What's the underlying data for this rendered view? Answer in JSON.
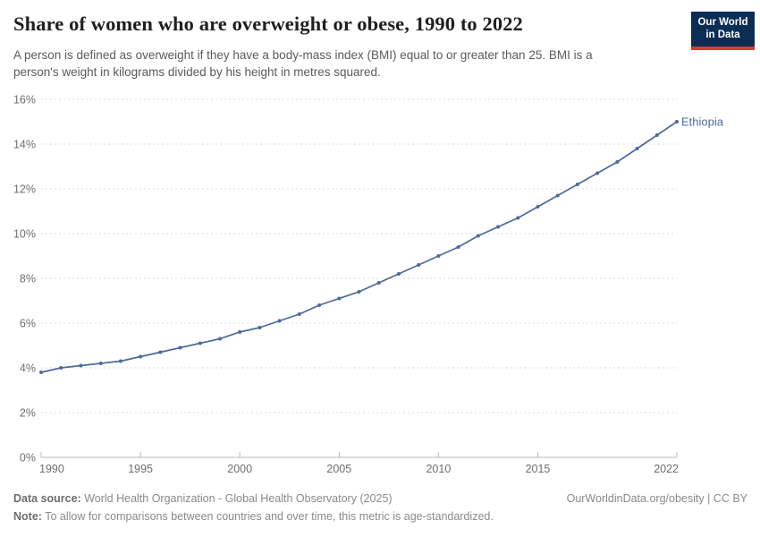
{
  "header": {
    "title": "Share of women who are overweight or obese, 1990 to 2022",
    "subtitle_line1": "A person is defined as overweight if they have a body-mass index (BMI) equal to or greater than 25. BMI is a",
    "subtitle_line2": "person's weight in kilograms divided by his height in metres squared."
  },
  "logo": {
    "line1": "Our World",
    "line2": "in Data",
    "bg_color": "#0b2d55",
    "bar_color": "#dc3a32"
  },
  "footer": {
    "datasource_label": "Data source:",
    "datasource_text": " World Health Organization - Global Health Observatory (2025)",
    "rights": "OurWorldinData.org/obesity | CC BY",
    "note_label": "Note:",
    "note_text": " To allow for comparisons between countries and over time, this metric is age-standardized."
  },
  "chart_data": {
    "type": "line",
    "title": "Share of women who are overweight or obese, 1990 to 2022",
    "x": [
      1990,
      1991,
      1992,
      1993,
      1994,
      1995,
      1996,
      1997,
      1998,
      1999,
      2000,
      2001,
      2002,
      2003,
      2004,
      2005,
      2006,
      2007,
      2008,
      2009,
      2010,
      2011,
      2012,
      2013,
      2014,
      2015,
      2016,
      2017,
      2018,
      2019,
      2020,
      2021,
      2022
    ],
    "series": [
      {
        "name": "Ethiopia",
        "color": "#4c6a9c",
        "values": [
          3.8,
          4.0,
          4.1,
          4.2,
          4.3,
          4.5,
          4.7,
          4.9,
          5.1,
          5.3,
          5.6,
          5.8,
          6.1,
          6.4,
          6.8,
          7.1,
          7.4,
          7.8,
          8.2,
          8.6,
          9.0,
          9.4,
          9.9,
          10.3,
          10.7,
          11.2,
          11.7,
          12.2,
          12.7,
          13.2,
          13.8,
          14.4,
          15.0
        ]
      }
    ],
    "xlabel": "",
    "ylabel": "",
    "xlim": [
      1990,
      2022
    ],
    "ylim": [
      0,
      16
    ],
    "x_ticks": [
      1990,
      1995,
      2000,
      2005,
      2010,
      2015,
      2022
    ],
    "y_ticks": [
      0,
      2,
      4,
      6,
      8,
      10,
      12,
      14,
      16
    ],
    "y_tick_suffix": "%",
    "grid": "horizontal-dashed",
    "legend_position": "line-end-label",
    "grid_color": "#dcdcdc",
    "axis_color": "#b9b9b9",
    "tick_label_color": "#6e6e6e"
  }
}
